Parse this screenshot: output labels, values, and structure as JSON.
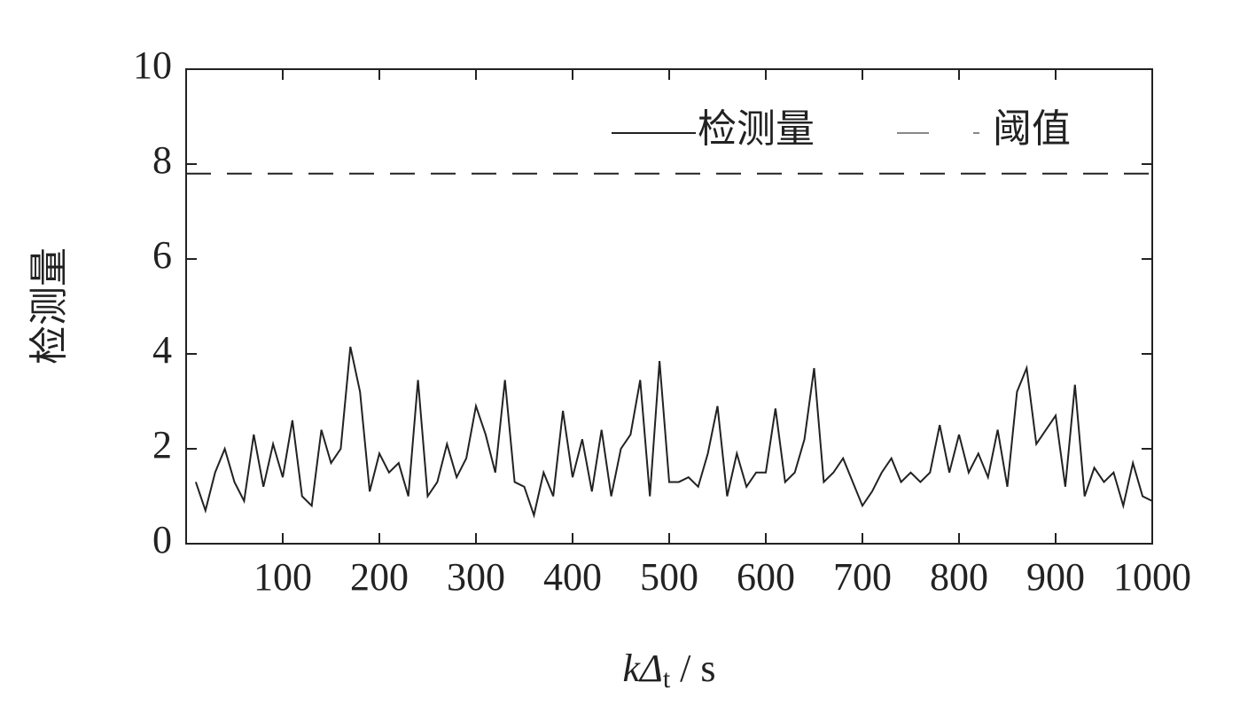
{
  "chart_data": {
    "type": "line",
    "xlabel": [
      "k",
      "Δ",
      "t",
      " / s"
    ],
    "ylabel": "检测量",
    "x": [
      10,
      20,
      30,
      40,
      50,
      60,
      70,
      80,
      90,
      100,
      110,
      120,
      130,
      140,
      150,
      160,
      170,
      180,
      190,
      200,
      210,
      220,
      230,
      240,
      250,
      260,
      270,
      280,
      290,
      300,
      310,
      320,
      330,
      340,
      350,
      360,
      370,
      380,
      390,
      400,
      410,
      420,
      430,
      440,
      450,
      460,
      470,
      480,
      490,
      500,
      510,
      520,
      530,
      540,
      550,
      560,
      570,
      580,
      590,
      600,
      610,
      620,
      630,
      640,
      650,
      660,
      670,
      680,
      690,
      700,
      710,
      720,
      730,
      740,
      750,
      760,
      770,
      780,
      790,
      800,
      810,
      820,
      830,
      840,
      850,
      860,
      870,
      880,
      890,
      900,
      910,
      920,
      930,
      940,
      950,
      960,
      970,
      980,
      990,
      1000
    ],
    "series": [
      {
        "name": "检测量",
        "color": "#222222",
        "values": [
          1.3,
          0.7,
          1.5,
          2.0,
          1.3,
          0.9,
          2.3,
          1.2,
          2.1,
          1.4,
          2.6,
          1.0,
          0.8,
          2.4,
          1.7,
          2.0,
          4.15,
          3.2,
          1.1,
          1.9,
          1.5,
          1.7,
          1.0,
          3.45,
          1.0,
          1.3,
          2.1,
          1.4,
          1.8,
          2.9,
          2.3,
          1.5,
          3.45,
          1.3,
          1.2,
          0.6,
          1.5,
          1.0,
          2.8,
          1.4,
          2.2,
          1.1,
          2.4,
          1.0,
          2.0,
          2.3,
          3.45,
          1.0,
          3.85,
          1.3,
          1.3,
          1.4,
          1.2,
          1.9,
          2.9,
          1.0,
          1.9,
          1.2,
          1.5,
          1.5,
          2.85,
          1.3,
          1.5,
          2.2,
          3.7,
          1.3,
          1.5,
          1.8,
          1.3,
          0.8,
          1.1,
          1.5,
          1.8,
          1.3,
          1.5,
          1.3,
          1.5,
          2.5,
          1.5,
          2.3,
          1.5,
          1.9,
          1.4,
          2.4,
          1.2,
          3.2,
          3.7,
          2.1,
          2.4,
          2.7,
          1.2,
          3.35,
          1.0,
          1.6,
          1.3,
          1.5,
          0.8,
          1.7,
          1.0,
          0.9
        ]
      }
    ],
    "threshold": {
      "name": "阈值",
      "value": 7.8,
      "color": "#222222",
      "legend_color": "#888888"
    },
    "xlim": [
      0,
      1000
    ],
    "xticks": [
      100,
      200,
      300,
      400,
      500,
      600,
      700,
      800,
      900,
      1000
    ],
    "ylim": [
      0,
      10
    ],
    "yticks": [
      0,
      2,
      4,
      6,
      8,
      10
    ],
    "legend": "upper right"
  }
}
